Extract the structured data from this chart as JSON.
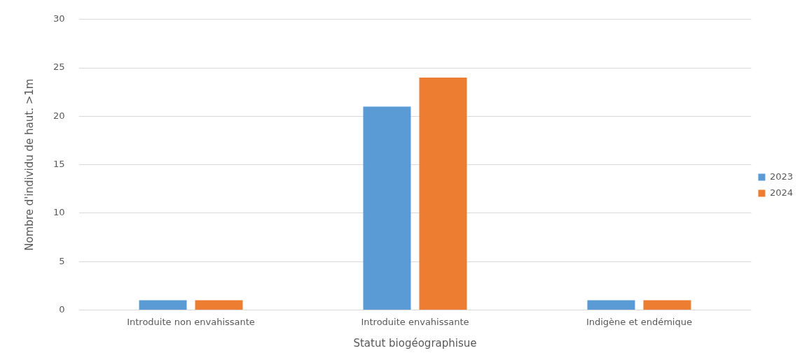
{
  "chart_data": {
    "type": "bar",
    "xlabel": "Statut biogéographisue",
    "ylabel": "Nombre d'individu de haut. >1m",
    "categories": [
      "Introduite non envahissante",
      "Introduite envahissante",
      "Indigène et endémique"
    ],
    "series": [
      {
        "name": "2023",
        "color": "#5b9bd5",
        "values": [
          1,
          21,
          1
        ]
      },
      {
        "name": "2024",
        "color": "#ed7d31",
        "values": [
          1,
          24,
          1
        ]
      }
    ],
    "ylim": [
      0,
      30
    ],
    "yticks": [
      0,
      5,
      10,
      15,
      20,
      25,
      30
    ],
    "grid": "y",
    "legend": "right"
  }
}
